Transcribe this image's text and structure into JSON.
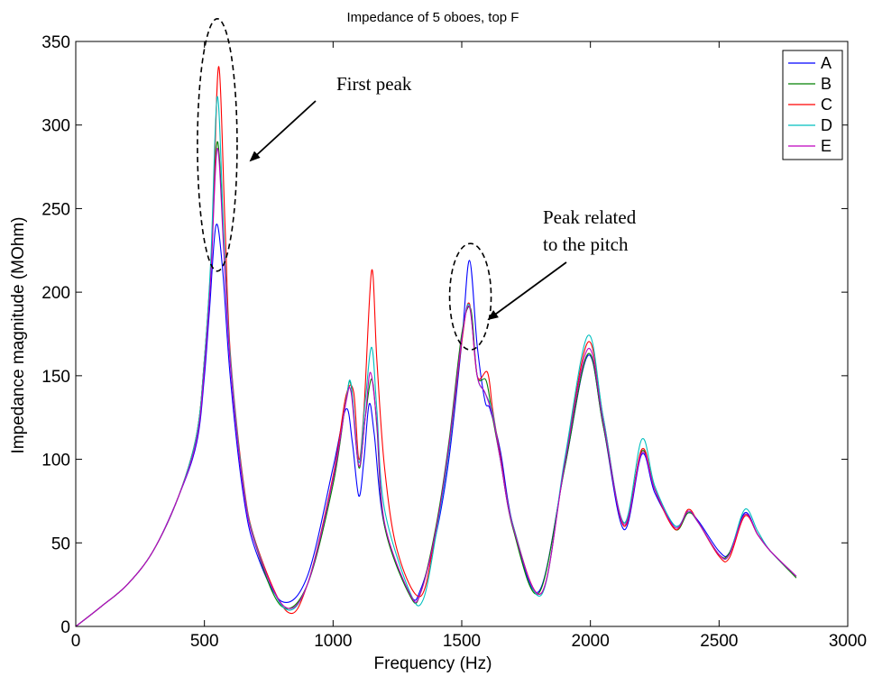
{
  "chart_data": {
    "type": "line",
    "title": "Impedance of 5 oboes, top F",
    "xlabel": "Frequency (Hz)",
    "ylabel": "Impedance magnitude (MOhm)",
    "xlim": [
      0,
      3000
    ],
    "ylim": [
      0,
      350
    ],
    "xticks": [
      0,
      500,
      1000,
      1500,
      2000,
      2500,
      3000
    ],
    "yticks": [
      0,
      50,
      100,
      150,
      200,
      250,
      300,
      350
    ],
    "grid": false,
    "legend_position": "top-right",
    "annotations": [
      {
        "text_lines": [
          "First peak"
        ],
        "target_x": 550,
        "target_y": 280
      },
      {
        "text_lines": [
          "Peak related",
          "to the pitch"
        ],
        "target_x": 1530,
        "target_y": 200
      }
    ],
    "series": [
      {
        "name": "A",
        "color": "#0000ff",
        "x": [
          0,
          100,
          200,
          300,
          400,
          470,
          500,
          520,
          545,
          570,
          600,
          650,
          700,
          800,
          900,
          1000,
          1050,
          1075,
          1100,
          1120,
          1140,
          1160,
          1200,
          1300,
          1340,
          1400,
          1450,
          1500,
          1530,
          1560,
          1590,
          1610,
          1650,
          1700,
          1800,
          1900,
          1990,
          2050,
          2130,
          2200,
          2250,
          2330,
          2380,
          2420,
          2500,
          2540,
          2600,
          2650,
          2700,
          2800
        ],
        "y": [
          0,
          12,
          25,
          45,
          78,
          110,
          150,
          190,
          240,
          215,
          150,
          80,
          45,
          15,
          30,
          95,
          130,
          110,
          78,
          100,
          133,
          115,
          60,
          19,
          22,
          55,
          100,
          170,
          219,
          168,
          135,
          130,
          105,
          60,
          21,
          95,
          162,
          120,
          58,
          103,
          80,
          60,
          68,
          63,
          45,
          44,
          68,
          55,
          45,
          30
        ]
      },
      {
        "name": "B",
        "color": "#008000",
        "x": [
          0,
          100,
          200,
          300,
          400,
          470,
          500,
          525,
          550,
          575,
          600,
          650,
          700,
          800,
          900,
          1000,
          1050,
          1070,
          1100,
          1125,
          1150,
          1170,
          1200,
          1300,
          1340,
          1400,
          1450,
          1500,
          1535,
          1560,
          1595,
          1620,
          1650,
          1700,
          1800,
          1900,
          1990,
          2050,
          2130,
          2200,
          2250,
          2330,
          2380,
          2420,
          2500,
          2540,
          2600,
          2650,
          2700,
          2800
        ],
        "y": [
          0,
          12,
          25,
          45,
          78,
          115,
          160,
          215,
          290,
          230,
          160,
          85,
          48,
          12,
          25,
          85,
          135,
          144,
          95,
          125,
          148,
          120,
          60,
          18,
          20,
          60,
          110,
          175,
          190,
          150,
          147,
          125,
          100,
          58,
          20,
          95,
          163,
          120,
          62,
          105,
          82,
          58,
          68,
          62,
          43,
          44,
          67,
          55,
          45,
          29
        ]
      },
      {
        "name": "C",
        "color": "#ff0000",
        "x": [
          0,
          100,
          200,
          300,
          400,
          470,
          500,
          530,
          555,
          580,
          600,
          650,
          700,
          820,
          900,
          1000,
          1050,
          1080,
          1100,
          1120,
          1150,
          1170,
          1200,
          1250,
          1340,
          1400,
          1450,
          1500,
          1530,
          1560,
          1600,
          1620,
          1650,
          1700,
          1810,
          1900,
          1990,
          2050,
          2130,
          2200,
          2250,
          2330,
          2380,
          2420,
          2500,
          2540,
          2600,
          2650,
          2700,
          2800
        ],
        "y": [
          0,
          12,
          25,
          45,
          78,
          115,
          160,
          230,
          335,
          240,
          165,
          88,
          50,
          9,
          25,
          90,
          138,
          140,
          100,
          130,
          213,
          160,
          95,
          45,
          18,
          58,
          105,
          170,
          193,
          150,
          152,
          130,
          102,
          60,
          20,
          98,
          170,
          125,
          60,
          106,
          82,
          58,
          70,
          62,
          42,
          41,
          66,
          55,
          45,
          30
        ]
      },
      {
        "name": "D",
        "color": "#00bfbf",
        "x": [
          0,
          100,
          200,
          300,
          400,
          470,
          500,
          525,
          550,
          575,
          600,
          650,
          700,
          810,
          900,
          1000,
          1050,
          1070,
          1100,
          1125,
          1150,
          1170,
          1200,
          1300,
          1350,
          1400,
          1450,
          1500,
          1530,
          1560,
          1590,
          1620,
          1650,
          1700,
          1810,
          1900,
          1990,
          2050,
          2130,
          2200,
          2250,
          2330,
          2380,
          2420,
          2500,
          2540,
          2600,
          2650,
          2700,
          2800
        ],
        "y": [
          0,
          12,
          25,
          45,
          78,
          115,
          160,
          220,
          317,
          235,
          162,
          86,
          49,
          11,
          25,
          88,
          135,
          145,
          98,
          135,
          167,
          130,
          70,
          20,
          16,
          55,
          105,
          172,
          192,
          150,
          140,
          128,
          100,
          60,
          19,
          100,
          174,
          125,
          62,
          112,
          84,
          60,
          69,
          62,
          43,
          43,
          70,
          57,
          45,
          30
        ]
      },
      {
        "name": "E",
        "color": "#bf00bf",
        "x": [
          0,
          100,
          200,
          300,
          400,
          470,
          500,
          525,
          550,
          575,
          600,
          650,
          700,
          810,
          900,
          1000,
          1050,
          1070,
          1100,
          1125,
          1145,
          1170,
          1200,
          1300,
          1340,
          1400,
          1450,
          1500,
          1530,
          1560,
          1590,
          1620,
          1650,
          1700,
          1810,
          1900,
          1990,
          2050,
          2130,
          2200,
          2250,
          2330,
          2380,
          2420,
          2500,
          2540,
          2600,
          2650,
          2700,
          2800
        ],
        "y": [
          0,
          12,
          25,
          45,
          78,
          112,
          155,
          210,
          286,
          225,
          158,
          84,
          48,
          12,
          25,
          88,
          134,
          140,
          96,
          125,
          152,
          122,
          62,
          19,
          20,
          58,
          108,
          172,
          191,
          150,
          140,
          126,
          100,
          59,
          20,
          97,
          166,
          122,
          61,
          104,
          82,
          59,
          69,
          62,
          43,
          43,
          67,
          55,
          45,
          30
        ]
      }
    ]
  }
}
